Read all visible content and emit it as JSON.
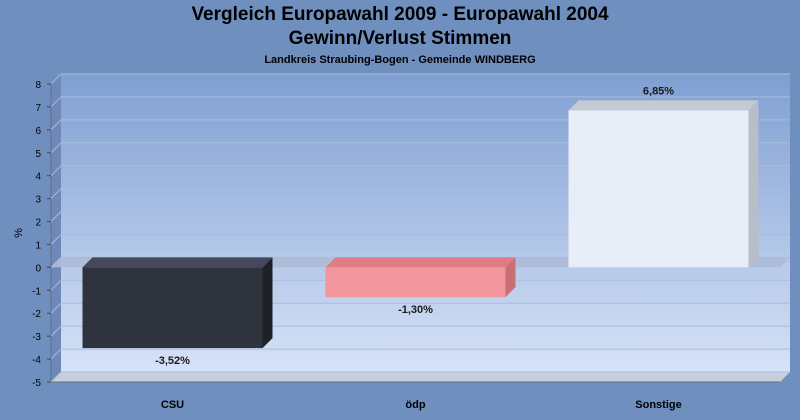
{
  "chart_data": {
    "type": "bar",
    "title": "Vergleich Europawahl 2009 - Europawahl 2004",
    "subtitle": "Gewinn/Verlust Stimmen",
    "subtitle2": "Landkreis Straubing-Bogen - Gemeinde WINDBERG",
    "ylabel": "%",
    "xlabel": "",
    "ylim": [
      -5,
      8
    ],
    "yticks": [
      8,
      7,
      6,
      5,
      4,
      3,
      2,
      1,
      0,
      -1,
      -2,
      -3,
      -4,
      -5
    ],
    "grid": true,
    "categories": [
      "CSU",
      "ödp",
      "Sonstige"
    ],
    "values": [
      -3.52,
      -1.3,
      6.85
    ],
    "value_labels": [
      "-3,52%",
      "-1,30%",
      "6,85%"
    ],
    "colors": [
      "#2f333d",
      "#f2959c",
      "#e8edf7"
    ],
    "side_colors": [
      "#1e2128",
      "#c86f76",
      "#b8bec8"
    ],
    "top_colors": [
      "#44485a",
      "#e07c84",
      "#c4c9d2"
    ]
  }
}
